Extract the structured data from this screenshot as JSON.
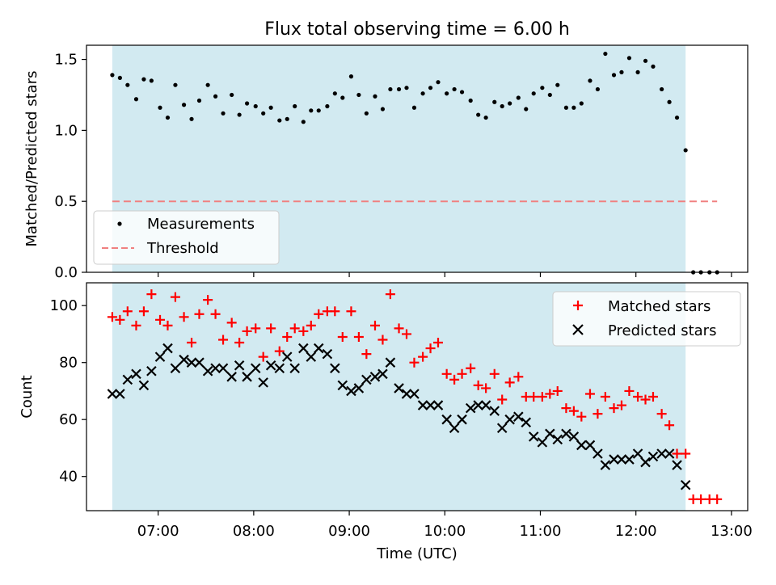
{
  "title": "Flux total observing time = 6.00 h",
  "colors": {
    "shade": "#add8e6",
    "measurement": "#000000",
    "threshold": "#f08080",
    "matched": "#ff0000",
    "predicted": "#000000"
  },
  "chart_data": [
    {
      "type": "scatter",
      "ylabel": "Matched/Predicted stars",
      "xlim": [
        6.25,
        13.17
      ],
      "ylim": [
        0.0,
        1.6
      ],
      "yticks": [
        0.0,
        0.5,
        1.0,
        1.5
      ],
      "ytick_labels": [
        "0.0",
        "0.5",
        "1.0",
        "1.5"
      ],
      "shaded_span": [
        6.52,
        12.52
      ],
      "legend": {
        "position": "lower-left",
        "entries": [
          "Measurements",
          "Threshold"
        ]
      },
      "threshold": {
        "name": "Threshold",
        "value": 0.5,
        "x_range": [
          6.52,
          12.85
        ]
      },
      "series": [
        {
          "name": "Measurements",
          "x": [
            6.52,
            6.6,
            6.68,
            6.77,
            6.85,
            6.93,
            7.02,
            7.1,
            7.18,
            7.27,
            7.35,
            7.43,
            7.52,
            7.6,
            7.68,
            7.77,
            7.85,
            7.93,
            8.02,
            8.1,
            8.18,
            8.27,
            8.35,
            8.43,
            8.52,
            8.6,
            8.68,
            8.77,
            8.85,
            8.93,
            9.02,
            9.1,
            9.18,
            9.27,
            9.35,
            9.43,
            9.52,
            9.6,
            9.68,
            9.77,
            9.85,
            9.93,
            10.02,
            10.1,
            10.18,
            10.27,
            10.35,
            10.43,
            10.52,
            10.6,
            10.68,
            10.77,
            10.85,
            10.93,
            11.02,
            11.1,
            11.18,
            11.27,
            11.35,
            11.43,
            11.52,
            11.6,
            11.68,
            11.77,
            11.85,
            11.93,
            12.02,
            12.1,
            12.18,
            12.27,
            12.35,
            12.43,
            12.52,
            12.6,
            12.68,
            12.77,
            12.85
          ],
          "y": [
            1.39,
            1.37,
            1.32,
            1.22,
            1.36,
            1.35,
            1.16,
            1.09,
            1.32,
            1.18,
            1.08,
            1.21,
            1.32,
            1.24,
            1.12,
            1.25,
            1.11,
            1.19,
            1.17,
            1.12,
            1.16,
            1.07,
            1.08,
            1.17,
            1.06,
            1.14,
            1.14,
            1.17,
            1.26,
            1.23,
            1.38,
            1.25,
            1.12,
            1.24,
            1.15,
            1.29,
            1.29,
            1.3,
            1.16,
            1.26,
            1.3,
            1.34,
            1.26,
            1.29,
            1.27,
            1.21,
            1.11,
            1.09,
            1.2,
            1.17,
            1.19,
            1.23,
            1.15,
            1.26,
            1.3,
            1.25,
            1.32,
            1.16,
            1.16,
            1.19,
            1.35,
            1.29,
            1.54,
            1.39,
            1.41,
            1.51,
            1.41,
            1.49,
            1.45,
            1.29,
            1.2,
            1.09,
            0.86,
            0.0,
            0.0,
            0.0,
            0.0
          ]
        }
      ]
    },
    {
      "type": "scatter",
      "ylabel": "Count",
      "xlabel": "Time (UTC)",
      "xlim": [
        6.25,
        13.17
      ],
      "ylim": [
        28,
        108
      ],
      "yticks": [
        40,
        60,
        80,
        100
      ],
      "ytick_labels": [
        "40",
        "60",
        "80",
        "100"
      ],
      "xticks": [
        7,
        8,
        9,
        10,
        11,
        12,
        13
      ],
      "xtick_labels": [
        "07:00",
        "08:00",
        "09:00",
        "10:00",
        "11:00",
        "12:00",
        "13:00"
      ],
      "shaded_span": [
        6.52,
        12.52
      ],
      "legend": {
        "position": "top-right",
        "entries": [
          "Matched stars",
          "Predicted stars"
        ]
      },
      "series": [
        {
          "name": "Matched stars",
          "marker": "+",
          "x": [
            6.52,
            6.6,
            6.68,
            6.77,
            6.85,
            6.93,
            7.02,
            7.1,
            7.18,
            7.27,
            7.35,
            7.43,
            7.52,
            7.6,
            7.68,
            7.77,
            7.85,
            7.93,
            8.02,
            8.1,
            8.18,
            8.27,
            8.35,
            8.43,
            8.52,
            8.6,
            8.68,
            8.77,
            8.85,
            8.93,
            9.02,
            9.1,
            9.18,
            9.27,
            9.35,
            9.43,
            9.52,
            9.6,
            9.68,
            9.77,
            9.85,
            9.93,
            10.02,
            10.1,
            10.18,
            10.27,
            10.35,
            10.43,
            10.52,
            10.6,
            10.68,
            10.77,
            10.85,
            10.93,
            11.02,
            11.1,
            11.18,
            11.27,
            11.35,
            11.43,
            11.52,
            11.6,
            11.68,
            11.77,
            11.85,
            11.93,
            12.02,
            12.1,
            12.18,
            12.27,
            12.35,
            12.43,
            12.52,
            12.6,
            12.68,
            12.77,
            12.85
          ],
          "y": [
            96,
            95,
            98,
            93,
            98,
            104,
            95,
            93,
            103,
            96,
            87,
            97,
            102,
            97,
            88,
            94,
            87,
            91,
            92,
            82,
            92,
            84,
            89,
            92,
            91,
            93,
            97,
            98,
            98,
            89,
            98,
            89,
            83,
            93,
            88,
            104,
            92,
            90,
            80,
            82,
            85,
            87,
            76,
            74,
            76,
            78,
            72,
            71,
            76,
            67,
            73,
            75,
            68,
            68,
            68,
            69,
            70,
            64,
            63,
            61,
            69,
            62,
            68,
            64,
            65,
            70,
            68,
            67,
            68,
            62,
            58,
            48,
            48,
            32,
            32,
            32,
            32
          ]
        },
        {
          "name": "Predicted stars",
          "marker": "x",
          "x": [
            6.52,
            6.6,
            6.68,
            6.77,
            6.85,
            6.93,
            7.02,
            7.1,
            7.18,
            7.27,
            7.35,
            7.43,
            7.52,
            7.6,
            7.68,
            7.77,
            7.85,
            7.93,
            8.02,
            8.1,
            8.18,
            8.27,
            8.35,
            8.43,
            8.52,
            8.6,
            8.68,
            8.77,
            8.85,
            8.93,
            9.02,
            9.1,
            9.18,
            9.27,
            9.35,
            9.43,
            9.52,
            9.6,
            9.68,
            9.77,
            9.85,
            9.93,
            10.02,
            10.1,
            10.18,
            10.27,
            10.35,
            10.43,
            10.52,
            10.6,
            10.68,
            10.77,
            10.85,
            10.93,
            11.02,
            11.1,
            11.18,
            11.27,
            11.35,
            11.43,
            11.52,
            11.6,
            11.68,
            11.77,
            11.85,
            11.93,
            12.02,
            12.1,
            12.18,
            12.27,
            12.35,
            12.43,
            12.52
          ],
          "y": [
            69,
            69,
            74,
            76,
            72,
            77,
            82,
            85,
            78,
            81,
            80,
            80,
            77,
            78,
            78,
            75,
            79,
            75,
            78,
            73,
            79,
            78,
            82,
            78,
            85,
            82,
            85,
            83,
            78,
            72,
            70,
            71,
            74,
            75,
            76,
            80,
            71,
            69,
            69,
            65,
            65,
            65,
            60,
            57,
            60,
            64,
            65,
            65,
            63,
            57,
            60,
            61,
            59,
            54,
            52,
            55,
            53,
            55,
            54,
            51,
            51,
            48,
            44,
            46,
            46,
            46,
            48,
            45,
            47,
            48,
            48,
            44,
            37
          ]
        }
      ]
    }
  ]
}
